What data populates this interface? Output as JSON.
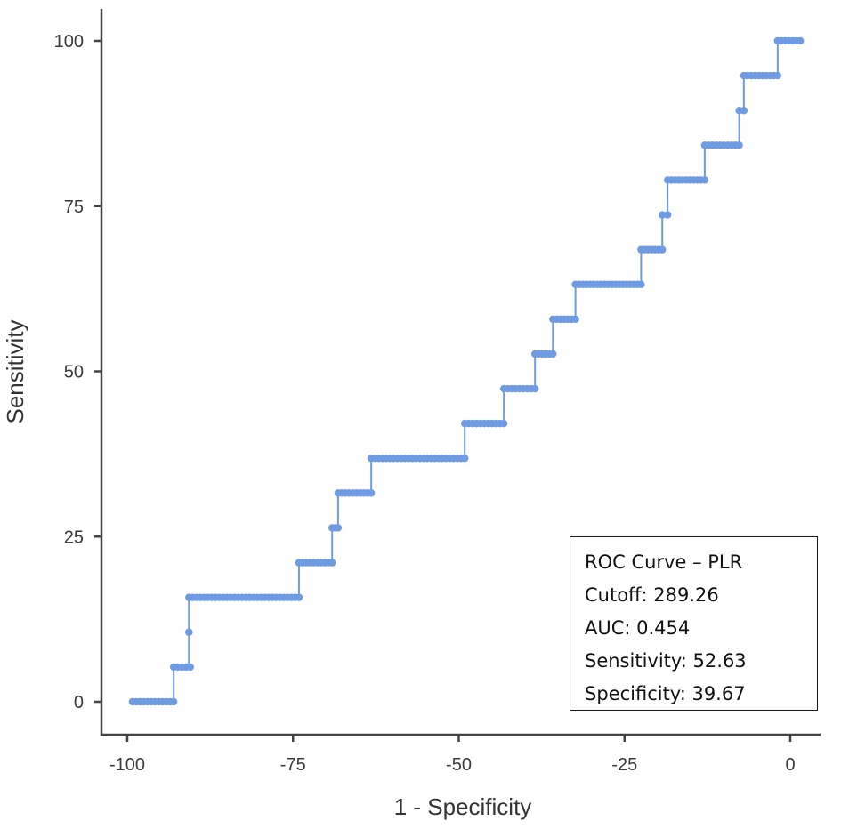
{
  "chart_data": {
    "type": "line",
    "subtype": "step-roc",
    "xlabel": "1 - Specificity",
    "ylabel": "Sensitivity",
    "xlim": [
      -101,
      2
    ],
    "ylim": [
      -3,
      107
    ],
    "xticks": [
      -100,
      -75,
      -50,
      -25,
      0
    ],
    "xtick_labels": [
      "-100",
      "-75",
      "-50",
      "-25",
      "0"
    ],
    "yticks": [
      0,
      25,
      50,
      75,
      100
    ],
    "ytick_labels": [
      "0",
      "25",
      "50",
      "75",
      "100"
    ],
    "grid": false,
    "series": [
      {
        "name": "ROC Curve – PLR",
        "color": "#6f9be3",
        "steps": [
          {
            "sensitivity": 0.0,
            "x_from": -99.2,
            "x_to": -93.0
          },
          {
            "sensitivity": 5.26,
            "x_from": -93.0,
            "x_to": -90.5
          },
          {
            "sensitivity": 10.53,
            "x_from": -90.7,
            "x_to": -90.7
          },
          {
            "sensitivity": 15.79,
            "x_from": -90.7,
            "x_to": -74.1
          },
          {
            "sensitivity": 21.05,
            "x_from": -74.1,
            "x_to": -69.1
          },
          {
            "sensitivity": 26.32,
            "x_from": -69.1,
            "x_to": -68.2
          },
          {
            "sensitivity": 31.58,
            "x_from": -68.2,
            "x_to": -63.2
          },
          {
            "sensitivity": 36.84,
            "x_from": -63.2,
            "x_to": -49.1
          },
          {
            "sensitivity": 42.11,
            "x_from": -49.1,
            "x_to": -43.2
          },
          {
            "sensitivity": 47.37,
            "x_from": -43.2,
            "x_to": -38.5
          },
          {
            "sensitivity": 52.63,
            "x_from": -38.5,
            "x_to": -35.8
          },
          {
            "sensitivity": 57.89,
            "x_from": -35.8,
            "x_to": -32.4
          },
          {
            "sensitivity": 63.16,
            "x_from": -32.4,
            "x_to": -22.5
          },
          {
            "sensitivity": 68.42,
            "x_from": -22.5,
            "x_to": -19.3
          },
          {
            "sensitivity": 73.68,
            "x_from": -19.3,
            "x_to": -18.5
          },
          {
            "sensitivity": 78.95,
            "x_from": -18.5,
            "x_to": -12.9
          },
          {
            "sensitivity": 84.21,
            "x_from": -12.9,
            "x_to": -7.7
          },
          {
            "sensitivity": 89.47,
            "x_from": -7.7,
            "x_to": -7.0
          },
          {
            "sensitivity": 94.74,
            "x_from": -7.0,
            "x_to": -1.9
          },
          {
            "sensitivity": 100.0,
            "x_from": -1.9,
            "x_to": 1.5
          }
        ]
      }
    ],
    "annotation": {
      "title": "ROC Curve – PLR",
      "cutoff": "Cutoff: 289.26",
      "auc": "AUC: 0.454",
      "sensitivity": "Sensitivity: 52.63",
      "specificity": "Specificity: 39.67"
    },
    "axis_color": "#444444"
  }
}
